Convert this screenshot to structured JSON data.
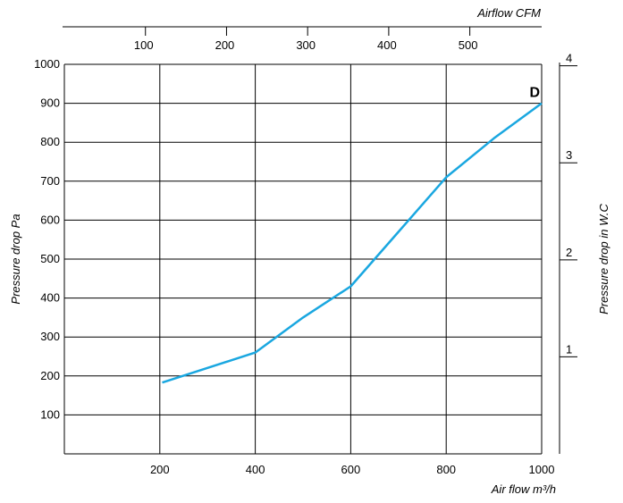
{
  "chart_data": {
    "type": "line",
    "x": [
      205,
      400,
      500,
      600,
      700,
      800,
      900,
      1000
    ],
    "series": [
      {
        "name": "D",
        "values": [
          183,
          260,
          350,
          430,
          570,
          710,
          810,
          900
        ],
        "color": "#1aa7e0"
      }
    ],
    "xlabel": "Air flow m³/h",
    "xlim": [
      0,
      1000
    ],
    "xticks": [
      200,
      400,
      600,
      800,
      1000
    ],
    "ylabel": "Pressure drop Pa",
    "ylim": [
      0,
      1000
    ],
    "yticks": [
      100,
      200,
      300,
      400,
      500,
      600,
      700,
      800,
      900,
      1000
    ],
    "top_axis": {
      "label": "Airflow CFM",
      "ticks": [
        100,
        200,
        300,
        400,
        500
      ],
      "units_per_x": 0.5886
    },
    "right_axis": {
      "label": "Pressure drop in W.C",
      "ticks": [
        1,
        2,
        3,
        4
      ],
      "units_per_y": 0.004015
    },
    "grid": true
  }
}
